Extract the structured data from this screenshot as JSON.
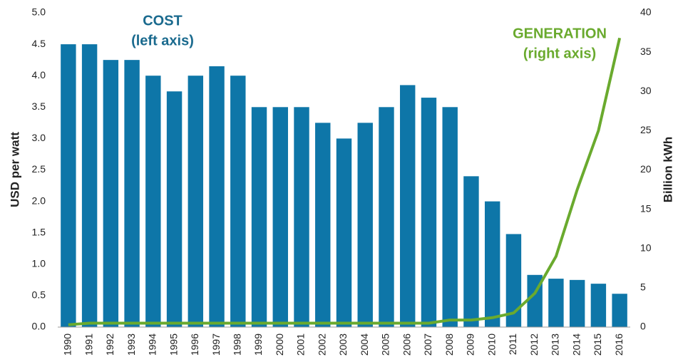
{
  "chart_data": {
    "type": "bar-line",
    "annotations": [
      {
        "text": "COST",
        "color": "#1a6a8e"
      },
      {
        "text": "(left axis)",
        "color": "#1a6a8e"
      },
      {
        "text": "GENERATION",
        "color": "#6aaa2e"
      },
      {
        "text": "(right axis)",
        "color": "#6aaa2e"
      }
    ],
    "ylabel": "USD per watt",
    "y2label": "Billion kWh",
    "categories": [
      "1990",
      "1991",
      "1992",
      "1993",
      "1994",
      "1995",
      "1996",
      "1997",
      "1998",
      "1999",
      "2000",
      "2001",
      "2002",
      "2003",
      "2004",
      "2005",
      "2006",
      "2007",
      "2008",
      "2009",
      "2010",
      "2011",
      "2012",
      "2013",
      "2014",
      "2015",
      "2016"
    ],
    "series": [
      {
        "type": "bar",
        "color": "#0e76a8",
        "values": [
          4.5,
          4.5,
          4.25,
          4.25,
          4.0,
          3.75,
          4.0,
          4.15,
          4.0,
          3.5,
          3.5,
          3.5,
          3.25,
          3.0,
          3.25,
          3.5,
          3.85,
          3.65,
          3.5,
          2.4,
          2.0,
          1.48,
          0.83,
          0.77,
          0.75,
          0.69,
          0.53
        ]
      },
      {
        "type": "line",
        "axis": "y2",
        "color": "#6aaa2e",
        "values": [
          0.3,
          0.5,
          0.5,
          0.5,
          0.5,
          0.5,
          0.5,
          0.5,
          0.5,
          0.5,
          0.5,
          0.5,
          0.5,
          0.5,
          0.5,
          0.5,
          0.5,
          0.5,
          0.9,
          0.9,
          1.2,
          1.8,
          4.3,
          9.0,
          17.5,
          25,
          36.8
        ]
      }
    ],
    "ylim": [
      0,
      5
    ],
    "yticks": [
      {
        "value": 0,
        "label": "0.0"
      },
      0.5,
      {
        "value": 1,
        "label": "1.0"
      },
      1.5,
      {
        "value": 2,
        "label": "2.0"
      },
      2.5,
      {
        "value": 3,
        "label": "3.0"
      },
      3.5,
      {
        "value": 4,
        "label": "4.0"
      },
      4.5,
      {
        "value": 5,
        "label": "5.0"
      }
    ],
    "y2lim": [
      0,
      40
    ],
    "y2ticks": [
      0,
      5,
      10,
      15,
      20,
      25,
      30,
      35,
      40
    ]
  }
}
